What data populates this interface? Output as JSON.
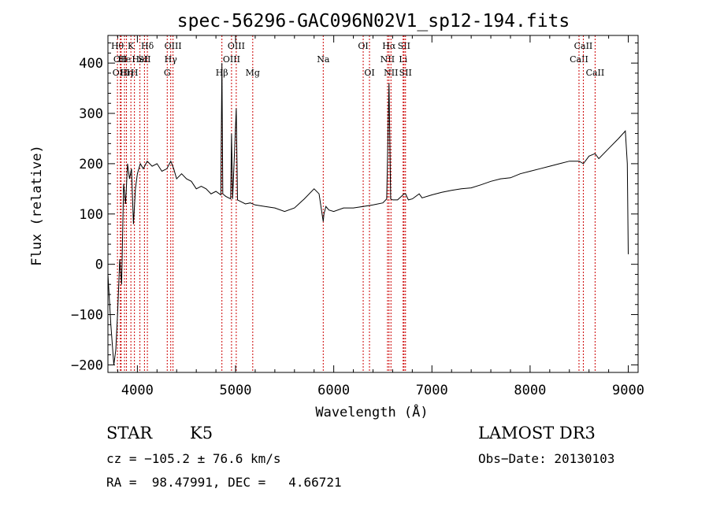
{
  "chart_data": {
    "type": "line",
    "title": "spec-56296-GAC096N02V1_sp12-194.fits",
    "xlabel": "Wavelength (Å)",
    "ylabel": "Flux (relative)",
    "xlim": [
      3700,
      9100
    ],
    "ylim": [
      -215,
      455
    ],
    "xticks": [
      4000,
      5000,
      6000,
      7000,
      8000,
      9000
    ],
    "yticks": [
      -200,
      -100,
      0,
      100,
      200,
      300,
      400
    ],
    "series": [
      {
        "name": "flux",
        "x": [
          3700,
          3730,
          3760,
          3780,
          3800,
          3820,
          3840,
          3860,
          3880,
          3900,
          3920,
          3940,
          3960,
          3980,
          4000,
          4030,
          4060,
          4100,
          4150,
          4200,
          4250,
          4300,
          4340,
          4370,
          4400,
          4450,
          4500,
          4550,
          4600,
          4650,
          4700,
          4750,
          4800,
          4850,
          4861,
          4870,
          4900,
          4950,
          4959,
          4970,
          5007,
          5020,
          5050,
          5100,
          5150,
          5200,
          5300,
          5400,
          5500,
          5600,
          5700,
          5800,
          5850,
          5893,
          5900,
          5920,
          5950,
          6000,
          6100,
          6200,
          6300,
          6400,
          6500,
          6540,
          6563,
          6580,
          6600,
          6650,
          6716,
          6731,
          6760,
          6800,
          6870,
          6900,
          7000,
          7100,
          7200,
          7300,
          7400,
          7500,
          7600,
          7700,
          7800,
          7900,
          8000,
          8100,
          8200,
          8300,
          8400,
          8500,
          8542,
          8600,
          8662,
          8700,
          8800,
          8900,
          8970,
          8990,
          9000
        ],
        "values": [
          -20,
          -120,
          -200,
          -170,
          -90,
          10,
          -40,
          160,
          120,
          200,
          170,
          190,
          80,
          150,
          180,
          200,
          190,
          205,
          195,
          200,
          185,
          190,
          205,
          190,
          170,
          180,
          170,
          165,
          150,
          155,
          150,
          140,
          145,
          138,
          400,
          140,
          135,
          130,
          260,
          130,
          310,
          128,
          125,
          120,
          122,
          118,
          115,
          112,
          105,
          112,
          130,
          150,
          140,
          85,
          100,
          115,
          108,
          105,
          112,
          112,
          115,
          118,
          122,
          130,
          360,
          130,
          128,
          128,
          140,
          140,
          128,
          130,
          140,
          132,
          138,
          143,
          147,
          150,
          152,
          158,
          165,
          170,
          172,
          180,
          185,
          190,
          195,
          200,
          205,
          205,
          200,
          215,
          220,
          210,
          230,
          250,
          265,
          200,
          20
        ]
      }
    ],
    "lines": [
      {
        "x": 3797,
        "row": 1,
        "label": "Hθ"
      },
      {
        "x": 3826,
        "row": 2,
        "label": "OII"
      },
      {
        "x": 3835,
        "row": 3,
        "label": "OIII"
      },
      {
        "x": 3869,
        "row": 2,
        "label": "He"
      },
      {
        "x": 3889,
        "row": 3,
        "label": "Hη"
      },
      {
        "x": 3934,
        "row": 1,
        "label": "K"
      },
      {
        "x": 3970,
        "row": 3,
        "label": "H"
      },
      {
        "x": 4026,
        "row": 2,
        "label": "HeI"
      },
      {
        "x": 4072,
        "row": 2,
        "label": "SII"
      },
      {
        "x": 4102,
        "row": 1,
        "label": "Hδ"
      },
      {
        "x": 4304,
        "row": 3,
        "label": "G"
      },
      {
        "x": 4340,
        "row": 2,
        "label": "Hγ"
      },
      {
        "x": 4363,
        "row": 1,
        "label": "OIII"
      },
      {
        "x": 4861,
        "row": 3,
        "label": "Hβ"
      },
      {
        "x": 4959,
        "row": 2,
        "label": "OIII"
      },
      {
        "x": 5007,
        "row": 1,
        "label": "OIII"
      },
      {
        "x": 5175,
        "row": 3,
        "label": "Mg"
      },
      {
        "x": 5893,
        "row": 2,
        "label": "Na"
      },
      {
        "x": 6300,
        "row": 1,
        "label": "OI"
      },
      {
        "x": 6364,
        "row": 3,
        "label": "OI"
      },
      {
        "x": 6548,
        "row": 2,
        "label": "NII"
      },
      {
        "x": 6563,
        "row": 1,
        "label": "Hα"
      },
      {
        "x": 6583,
        "row": 3,
        "label": "NII"
      },
      {
        "x": 6707,
        "row": 2,
        "label": "Li"
      },
      {
        "x": 6716,
        "row": 1,
        "label": "SII"
      },
      {
        "x": 6731,
        "row": 3,
        "label": "SII"
      },
      {
        "x": 8498,
        "row": 2,
        "label": "CaII"
      },
      {
        "x": 8542,
        "row": 1,
        "label": "CaII"
      },
      {
        "x": 8662,
        "row": 3,
        "label": "CaII"
      }
    ]
  },
  "info": {
    "class": "STAR",
    "subclass": "K5",
    "survey": "LAMOST DR3",
    "cz": "cz = −105.2 ± 76.6 km/s",
    "obs_date": "Obs−Date: 20130103",
    "coords": "RA =  98.47991, DEC =   4.66721"
  },
  "colors": {
    "line": "#cc0000",
    "axis": "#000000",
    "spectrum": "#000000"
  }
}
